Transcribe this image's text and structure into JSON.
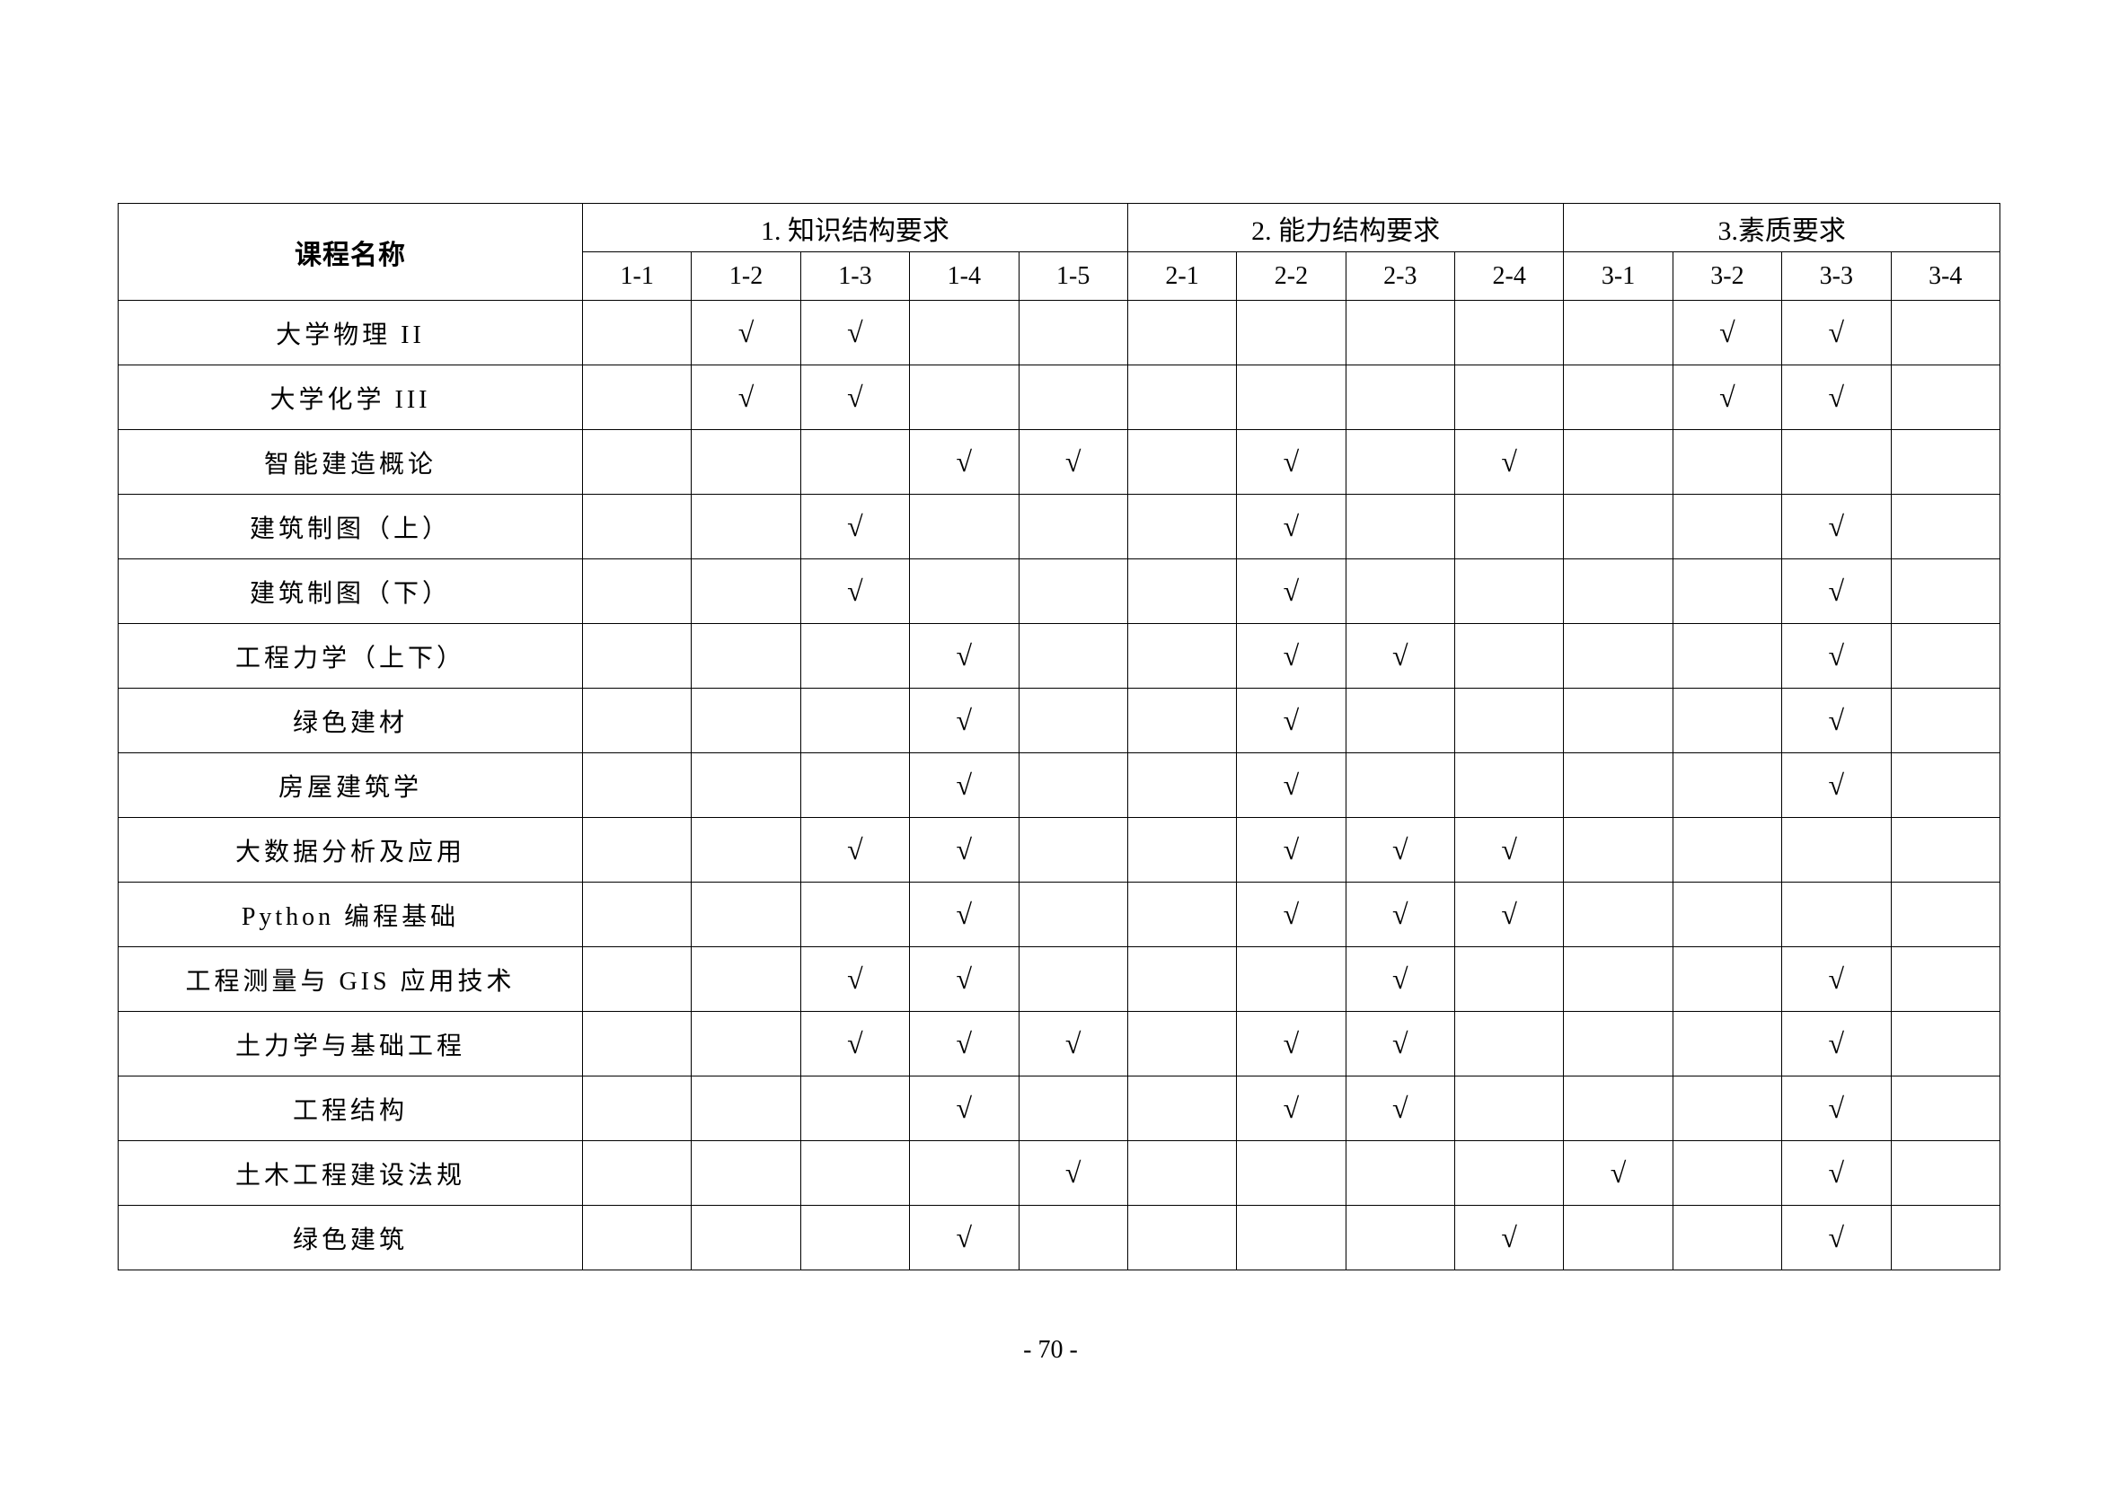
{
  "table": {
    "name_header": "课程名称",
    "groups": [
      {
        "label": "1. 知识结构要求",
        "codes": [
          "1-1",
          "1-2",
          "1-3",
          "1-4",
          "1-5"
        ]
      },
      {
        "label": "2. 能力结构要求",
        "codes": [
          "2-1",
          "2-2",
          "2-3",
          "2-4"
        ]
      },
      {
        "label": "3.素质要求",
        "codes": [
          "3-1",
          "3-2",
          "3-3",
          "3-4"
        ]
      }
    ],
    "check_mark": "√",
    "rows": [
      {
        "name": "大学物理 II",
        "checks": [
          "1-2",
          "1-3",
          "3-2",
          "3-3"
        ]
      },
      {
        "name": "大学化学 III",
        "checks": [
          "1-2",
          "1-3",
          "3-2",
          "3-3"
        ]
      },
      {
        "name": "智能建造概论",
        "checks": [
          "1-4",
          "1-5",
          "2-2",
          "2-4"
        ]
      },
      {
        "name": "建筑制图（上）",
        "checks": [
          "1-3",
          "2-2",
          "3-3"
        ]
      },
      {
        "name": "建筑制图（下）",
        "checks": [
          "1-3",
          "2-2",
          "3-3"
        ]
      },
      {
        "name": "工程力学（上下）",
        "checks": [
          "1-4",
          "2-2",
          "2-3",
          "3-3"
        ]
      },
      {
        "name": "绿色建材",
        "checks": [
          "1-4",
          "2-2",
          "3-3"
        ]
      },
      {
        "name": "房屋建筑学",
        "checks": [
          "1-4",
          "2-2",
          "3-3"
        ]
      },
      {
        "name": "大数据分析及应用",
        "checks": [
          "1-3",
          "1-4",
          "2-2",
          "2-3",
          "2-4"
        ]
      },
      {
        "name": "Python 编程基础",
        "checks": [
          "1-4",
          "2-2",
          "2-3",
          "2-4"
        ]
      },
      {
        "name": "工程测量与 GIS 应用技术",
        "checks": [
          "1-3",
          "1-4",
          "2-3",
          "3-3"
        ]
      },
      {
        "name": "土力学与基础工程",
        "checks": [
          "1-3",
          "1-4",
          "1-5",
          "2-2",
          "2-3",
          "3-3"
        ]
      },
      {
        "name": "工程结构",
        "checks": [
          "1-4",
          "2-2",
          "2-3",
          "3-3"
        ]
      },
      {
        "name": "土木工程建设法规",
        "checks": [
          "1-5",
          "3-1",
          "3-3"
        ]
      },
      {
        "name": "绿色建筑",
        "checks": [
          "1-4",
          "2-4",
          "3-3"
        ]
      }
    ]
  },
  "page_number": "- 70 -"
}
